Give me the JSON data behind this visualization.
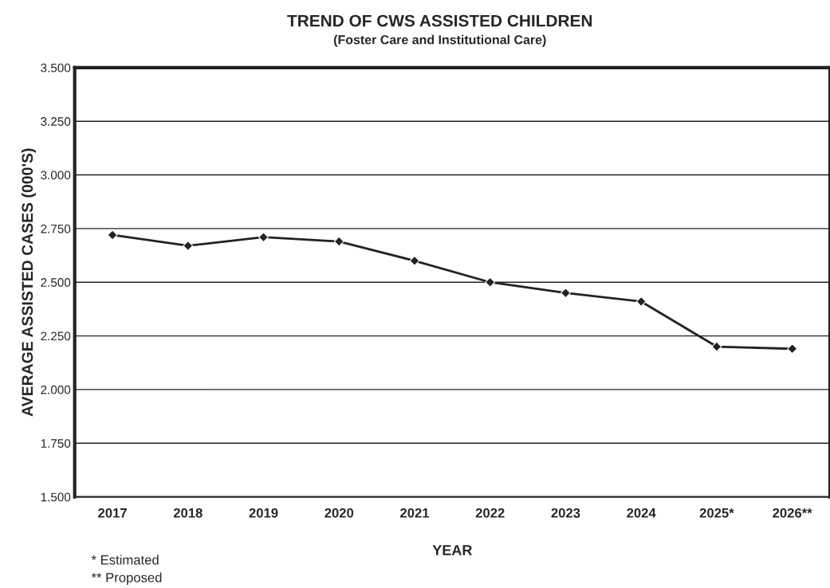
{
  "chart_data": {
    "type": "line",
    "title": "TREND OF CWS ASSISTED CHILDREN",
    "subtitle": "(Foster Care and Institutional Care)",
    "xlabel": "YEAR",
    "ylabel": "AVERAGE ASSISTED CASES (000'S)",
    "categories": [
      "2017",
      "2018",
      "2019",
      "2020",
      "2021",
      "2022",
      "2023",
      "2024",
      "2025*",
      "2026**"
    ],
    "series": [
      {
        "color": "#222222",
        "values": [
          2720,
          2670,
          2710,
          2690,
          2600,
          2500,
          2450,
          2410,
          2200,
          2190
        ]
      }
    ],
    "ylim": [
      1500,
      3500
    ],
    "yticks": [
      {
        "value": 1500,
        "label": "1.500"
      },
      {
        "value": 1750,
        "label": "1.750"
      },
      {
        "value": 2000,
        "label": "2.000"
      },
      {
        "value": 2250,
        "label": "2.250"
      },
      {
        "value": 2500,
        "label": "2.500"
      },
      {
        "value": 2750,
        "label": "2.750"
      },
      {
        "value": 3000,
        "label": "3.000"
      },
      {
        "value": 3250,
        "label": "3.250"
      },
      {
        "value": 3500,
        "label": "3.500"
      }
    ],
    "grid": "y",
    "marker": "diamond",
    "line_style": "solid",
    "legend": false,
    "annotations": [
      "* Estimated",
      "** Proposed"
    ]
  }
}
